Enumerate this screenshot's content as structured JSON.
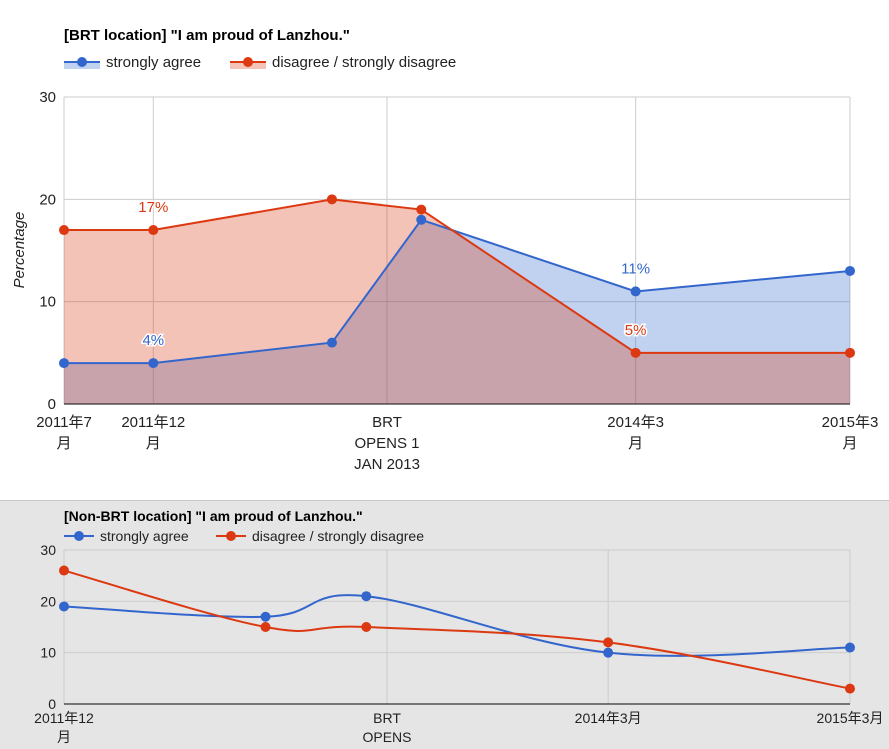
{
  "chart_data": [
    {
      "type": "area",
      "title": "[BRT location] \"I am proud of Lanzhou.\"",
      "xlabel": "",
      "ylabel": "Percentage",
      "ylim": [
        0,
        30
      ],
      "yticks": [
        "0",
        "10",
        "20",
        "30"
      ],
      "x_tick_labels": [
        [
          "2011年7",
          "月"
        ],
        [
          "2011年12",
          "月"
        ],
        [
          "BRT",
          "OPENS 1",
          "JAN 2013"
        ],
        [
          "2014年3",
          "月"
        ],
        [
          "2015年3",
          "月"
        ]
      ],
      "x": [
        "2011-07",
        "2011-12",
        "2012-10",
        "2013-03",
        "2014-03",
        "2015-03"
      ],
      "series": [
        {
          "name": "strongly agree",
          "color": "#3366cc",
          "values": [
            4,
            4,
            6,
            18,
            11,
            13
          ],
          "data_labels": [
            null,
            "4%",
            null,
            null,
            "11%",
            null
          ]
        },
        {
          "name": "disagree / strongly disagree",
          "color": "#dc3912",
          "values": [
            17,
            17,
            20,
            19,
            5,
            5
          ],
          "data_labels": [
            null,
            "17%",
            null,
            null,
            "5%",
            null
          ]
        }
      ],
      "grid": true,
      "legend": "top-left"
    },
    {
      "type": "line",
      "title": "[Non-BRT location] \"I am proud of Lanzhou.\"",
      "xlabel": "",
      "ylabel": "",
      "ylim": [
        0,
        30
      ],
      "yticks": [
        "0",
        "10",
        "20",
        "30"
      ],
      "x_tick_labels": [
        [
          "2011年12",
          "月"
        ],
        [
          "BRT",
          "OPENS"
        ],
        [
          "2014年3月"
        ],
        [
          "2015年3月"
        ]
      ],
      "x": [
        "2011-12",
        "2012-10",
        "2013-03",
        "2014-03",
        "2015-03"
      ],
      "series": [
        {
          "name": "strongly agree",
          "color": "#3366cc",
          "values": [
            19,
            17,
            21,
            10,
            11
          ]
        },
        {
          "name": "disagree / strongly disagree",
          "color": "#dc3912",
          "values": [
            26,
            15,
            15,
            12,
            3
          ]
        }
      ],
      "grid": true,
      "legend": "top-left"
    }
  ]
}
